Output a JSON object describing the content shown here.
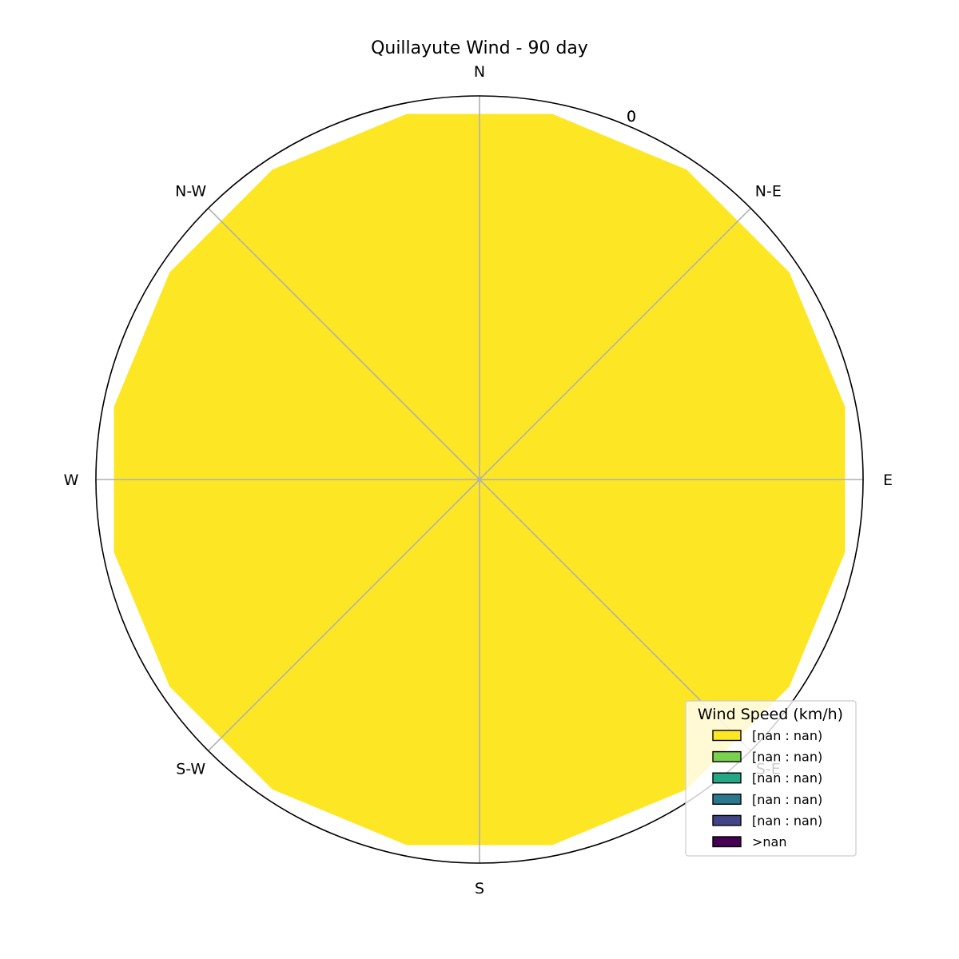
{
  "chart_data": {
    "type": "windrose",
    "title": "Quillayute Wind - 90 day",
    "directions": [
      "N",
      "N-E",
      "E",
      "S-E",
      "S",
      "S-W",
      "W",
      "N-W"
    ],
    "radial_tick_labels": [
      "0",
      "0"
    ],
    "sector_count": 16,
    "filled_bin_index": 0,
    "colors": [
      "#fde725",
      "#7ad151",
      "#22a884",
      "#2a788e",
      "#414487",
      "#440154"
    ],
    "grid": true,
    "legend": {
      "title": "Wind Speed (km/h)",
      "placement": "lower-right",
      "entries": [
        "[nan : nan)",
        "[nan : nan)",
        "[nan : nan)",
        "[nan : nan)",
        "[nan : nan)",
        ">nan"
      ]
    }
  }
}
